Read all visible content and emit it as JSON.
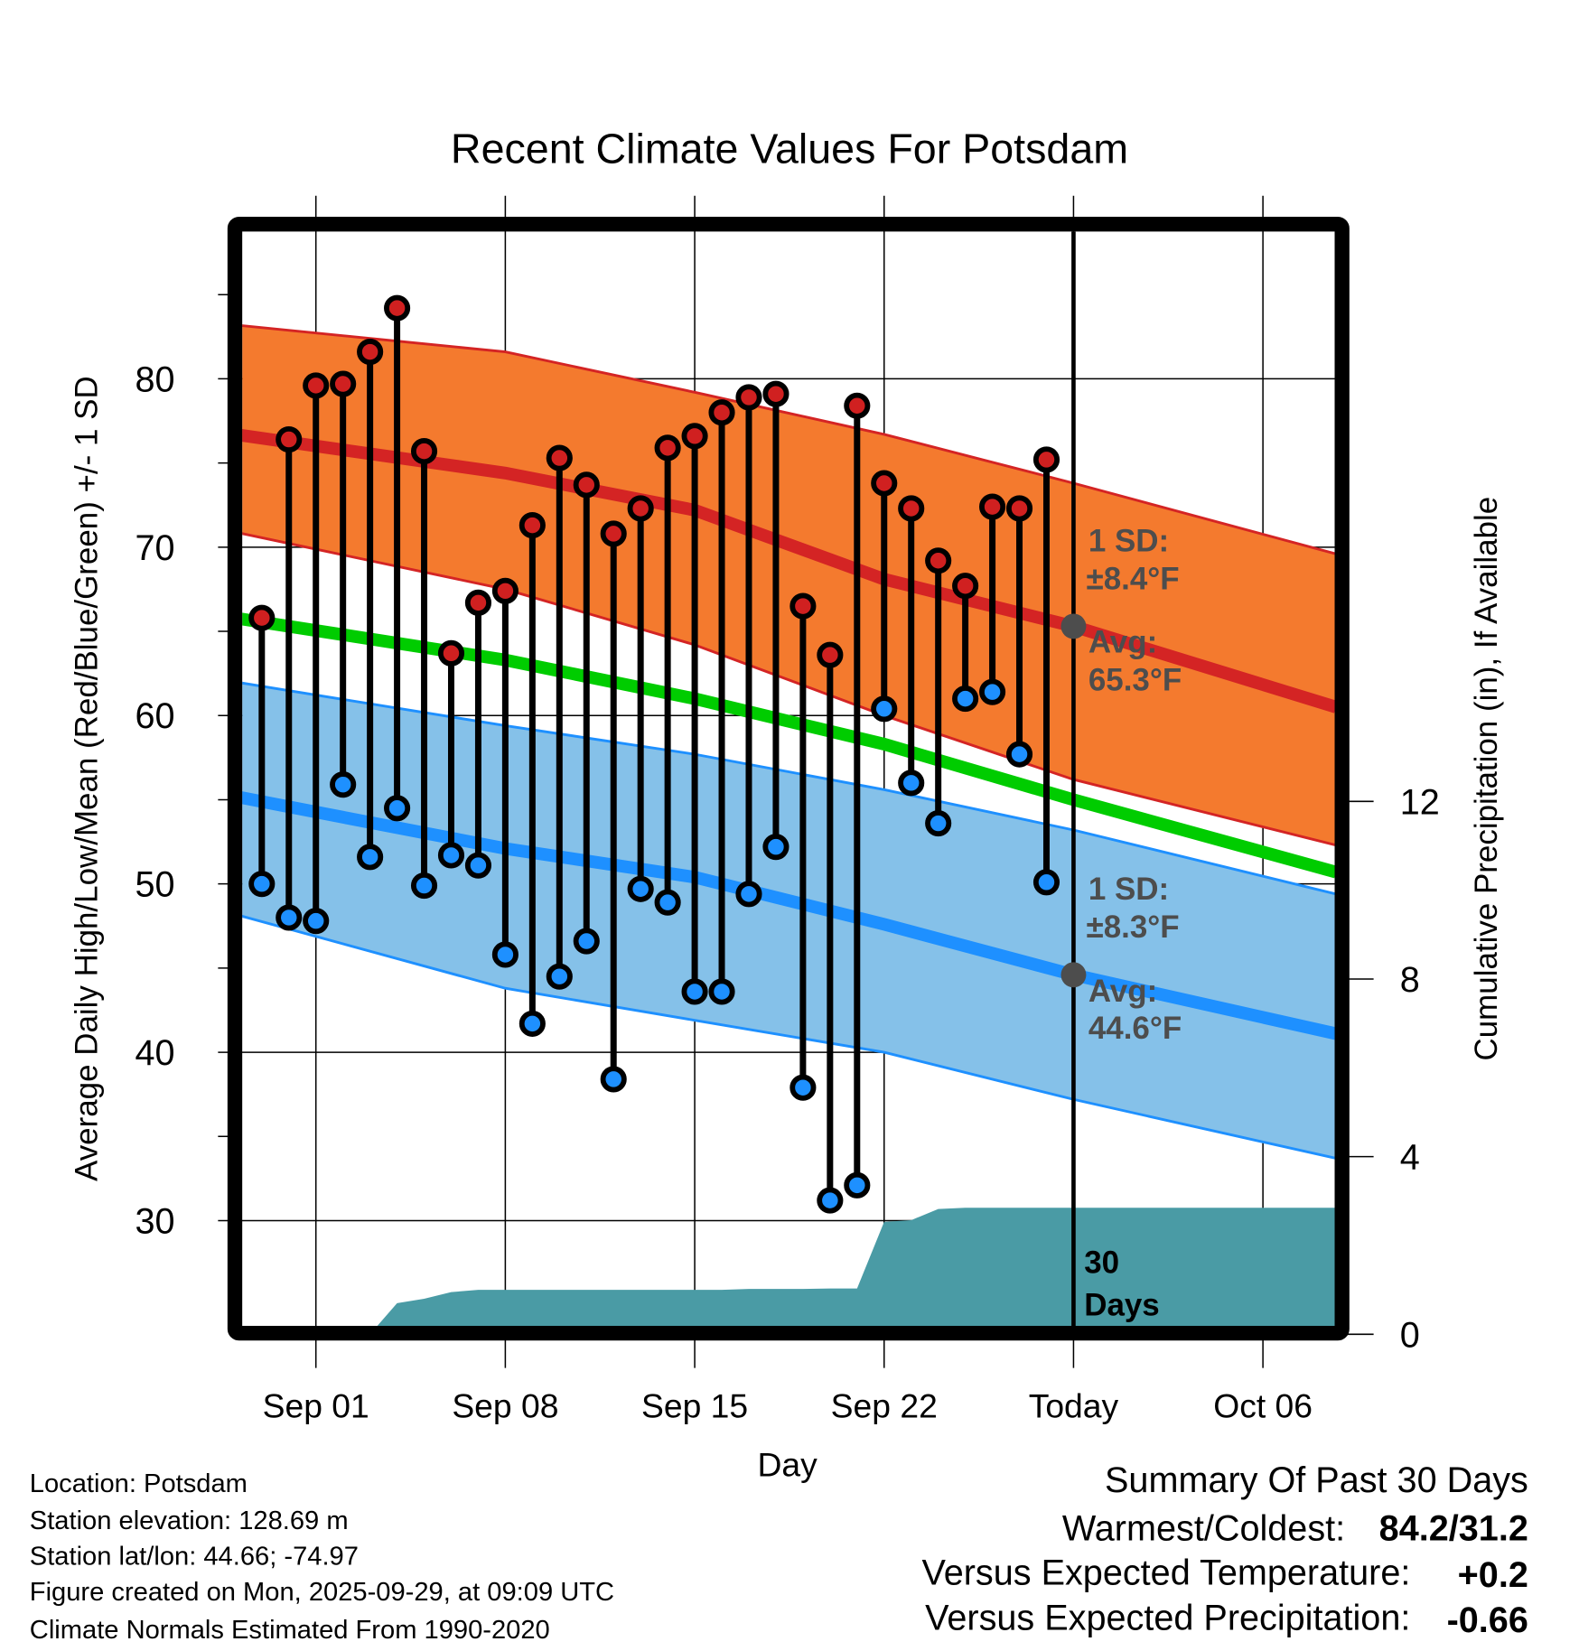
{
  "chart_data": {
    "type": "line",
    "title": "Recent Climate Values For Potsdam",
    "xlabel": "Day",
    "ylabel": "Average Daily High/Low/Mean (Red/Blue/Green) +/- 1 SD",
    "y2label": "Cumulative Precipitation (in), If Available",
    "ylim": [
      23.25,
      89.25
    ],
    "y2lim": [
      0,
      24.7
    ],
    "x_unit": "days relative to Sep 01",
    "xlim": [
      -3,
      37.7
    ],
    "x_ticks": [
      {
        "day": 0,
        "label": "Sep 01"
      },
      {
        "day": 7,
        "label": "Sep 08"
      },
      {
        "day": 14,
        "label": "Sep 15"
      },
      {
        "day": 21,
        "label": "Sep 22"
      },
      {
        "day": 28,
        "label": "Today"
      },
      {
        "day": 35,
        "label": "Oct 06"
      }
    ],
    "y_ticks": [
      30,
      40,
      50,
      60,
      70,
      80
    ],
    "y2_ticks": [
      0,
      4,
      8,
      12
    ],
    "today_day": 28,
    "daily": {
      "days": [
        -2,
        -1,
        0,
        1,
        2,
        3,
        4,
        5,
        6,
        7,
        8,
        9,
        10,
        11,
        12,
        13,
        14,
        15,
        16,
        17,
        18,
        19,
        20,
        21,
        22,
        23,
        24,
        25,
        26,
        27
      ],
      "highs": [
        65.8,
        76.4,
        79.6,
        79.7,
        81.6,
        84.2,
        75.7,
        63.7,
        66.7,
        67.4,
        71.3,
        75.3,
        73.7,
        70.8,
        72.3,
        75.9,
        76.6,
        78.0,
        78.9,
        79.1,
        66.5,
        63.6,
        78.4,
        73.8,
        72.3,
        69.2,
        67.7,
        72.4,
        72.3,
        75.2
      ],
      "lows": [
        50.0,
        48.0,
        47.8,
        55.9,
        51.6,
        54.5,
        49.9,
        51.7,
        51.1,
        45.8,
        41.7,
        44.5,
        46.6,
        38.4,
        49.7,
        48.9,
        43.6,
        43.6,
        49.4,
        52.2,
        37.9,
        31.2,
        32.1,
        60.4,
        56.0,
        53.6,
        61.0,
        61.4,
        57.7,
        50.1
      ],
      "precip_cumulative": [
        0,
        0,
        0,
        0,
        0,
        0.7,
        0.8,
        0.95,
        1.0,
        1.0,
        1.0,
        1.0,
        1.0,
        1.0,
        1.0,
        1.0,
        1.0,
        1.0,
        1.02,
        1.02,
        1.02,
        1.03,
        1.03,
        2.53,
        2.57,
        2.82,
        2.85,
        2.85,
        2.85,
        2.85
      ]
    },
    "normals": {
      "days": [
        -3,
        7,
        14,
        21,
        28,
        37.7
      ],
      "high_upper": [
        83.2,
        81.6,
        79.2,
        76.7,
        73.8,
        69.6
      ],
      "high_avg": [
        76.7,
        74.4,
        72.2,
        68.1,
        65.3,
        60.5
      ],
      "high_lower": [
        70.9,
        67.5,
        64.2,
        60.0,
        56.2,
        52.3
      ],
      "mean": [
        65.8,
        63.3,
        61.0,
        58.3,
        55.0,
        50.7
      ],
      "low_upper": [
        62.0,
        59.4,
        57.7,
        55.6,
        53.2,
        49.4
      ],
      "low_avg": [
        55.2,
        52.1,
        50.4,
        47.6,
        44.6,
        41.1
      ],
      "low_lower": [
        48.2,
        43.8,
        41.9,
        40.0,
        37.2,
        33.7
      ]
    },
    "annotations": {
      "high_sd_label": "1 SD:",
      "high_sd_value": "±8.4°F",
      "high_avg_label": "Avg:",
      "high_avg_value": "65.3°F",
      "low_sd_label": "1 SD:",
      "low_sd_value": "±8.3°F",
      "low_avg_label": "Avg:",
      "low_avg_value": "44.6°F",
      "today_high_avg": 65.3,
      "today_low_avg": 44.6,
      "window_num": "30",
      "window_unit": "Days"
    },
    "colors": {
      "high_band": "#f47a2e",
      "high_line": "#d42424",
      "mean_line": "#00cc00",
      "low_band": "#85c1e9",
      "low_line": "#1e90ff",
      "precip": "#4a9ba5",
      "high_dot": "#d02020",
      "low_dot": "#1e90ff",
      "annotation": "#4d4d4d"
    }
  },
  "info": {
    "location": "Location: Potsdam",
    "elevation": "Station elevation: 128.69 m",
    "latlon": "Station lat/lon: 44.66; -74.97",
    "created": "Figure created on Mon, 2025-09-29, at 09:09 UTC",
    "normals": "Climate Normals Estimated From 1990-2020"
  },
  "summary": {
    "title": "Summary Of Past 30 Days",
    "warm_cold_label": "Warmest/Coldest:",
    "warm_cold_value": "84.2/31.2",
    "temp_label": "Versus Expected Temperature:",
    "temp_value": "+0.2",
    "temp_color": "#d42424",
    "precip_label": "Versus Expected Precipitation:",
    "precip_value": "-0.66",
    "precip_color": "#a0522d"
  }
}
